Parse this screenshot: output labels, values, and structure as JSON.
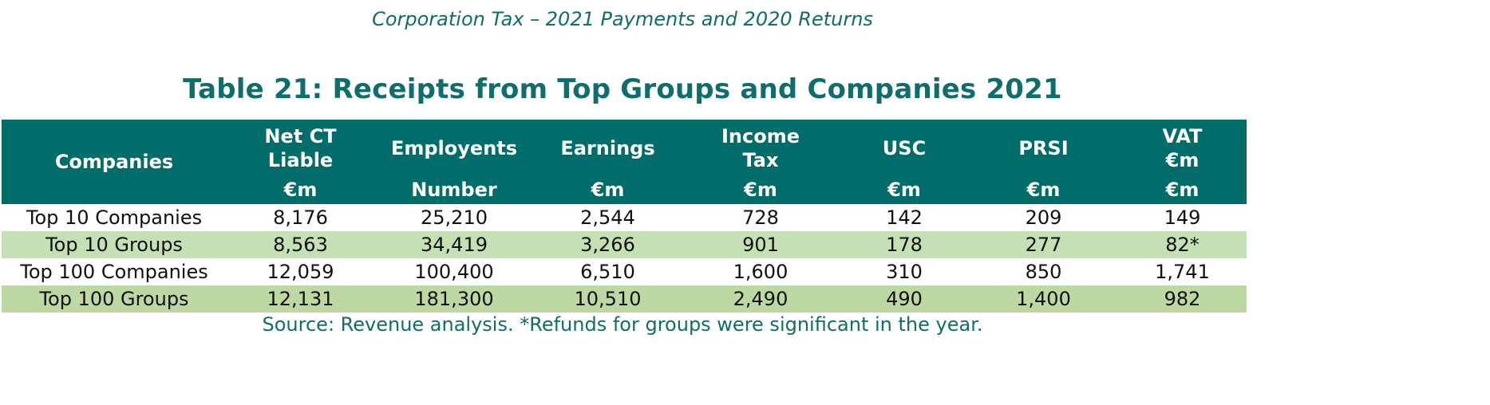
{
  "header": {
    "title": "Corporation Tax – 2021 Payments and 2020 Returns"
  },
  "table": {
    "title": "Table 21: Receipts from Top Groups and Companies 2021",
    "columns": [
      {
        "label": "Companies",
        "unit": ""
      },
      {
        "label": "Net CT Liable",
        "unit": "€m"
      },
      {
        "label": "Employents",
        "unit": "Number"
      },
      {
        "label": "Earnings",
        "unit": "€m"
      },
      {
        "label": "Income Tax",
        "unit": "€m"
      },
      {
        "label": "USC",
        "unit": "€m"
      },
      {
        "label": "PRSI",
        "unit": "€m"
      },
      {
        "label": "VAT €m",
        "unit": "€m"
      }
    ],
    "rows": [
      [
        "Top 10 Companies",
        "8,176",
        "25,210",
        "2,544",
        "728",
        "142",
        "209",
        "149"
      ],
      [
        "Top 10 Groups",
        "8,563",
        "34,419",
        "3,266",
        "901",
        "178",
        "277",
        "82*"
      ],
      [
        "Top 100 Companies",
        "12,059",
        "100,400",
        "6,510",
        "1,600",
        "310",
        "850",
        "1,741"
      ],
      [
        "Top 100 Groups",
        "12,131",
        "181,300",
        "10,510",
        "2,490",
        "490",
        "1,400",
        "982"
      ]
    ],
    "source_note": "Source: Revenue analysis. *Refunds for groups were significant in the year."
  },
  "colors": {
    "header_bg": "#006d6b",
    "title_text": "#0f6d6b",
    "row_band_light": "#c5e0b4",
    "row_band_dark": "#bdd8a3"
  }
}
